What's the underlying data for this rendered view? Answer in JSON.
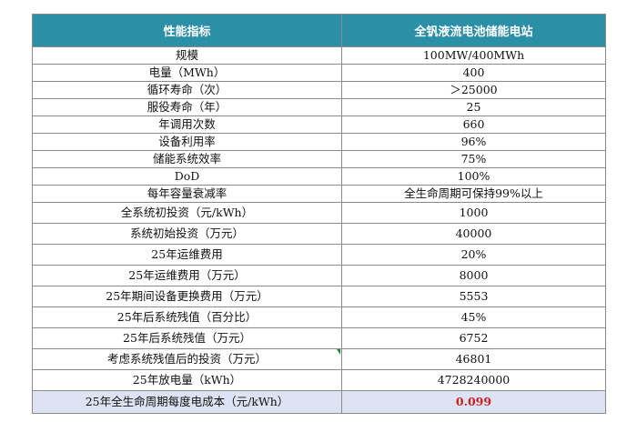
{
  "table": {
    "headers": [
      "性能指标",
      "全钒液流电池储能电站"
    ],
    "rows": [
      {
        "label": "规模",
        "value": "100MW/400MWh"
      },
      {
        "label": "电量（MWh）",
        "value": "400"
      },
      {
        "label": "循环寿命（次）",
        "value": "＞25000"
      },
      {
        "label": "服役寿命（年）",
        "value": "25"
      },
      {
        "label": "年调用次数",
        "value": "660"
      },
      {
        "label": "设备利用率",
        "value": "96%"
      },
      {
        "label": "储能系统效率",
        "value": "75%"
      },
      {
        "label": "DoD",
        "value": "100%"
      },
      {
        "label": "每年容量衰减率",
        "value": "全生命周期可保持99%以上"
      },
      {
        "label": "全系统初投资（元/kWh）",
        "value": "1000"
      },
      {
        "label": "系统初始投资（万元）",
        "value": "40000"
      },
      {
        "label": "25年运维费用",
        "value": "20%"
      },
      {
        "label": "25年运维费用（万元）",
        "value": "8000"
      },
      {
        "label": "25年期间设备更换费用（万元）",
        "value": "5553"
      },
      {
        "label": "25年后系统残值（百分比）",
        "value": "45%"
      },
      {
        "label": "25年后系统残值（万元）",
        "value": "6752"
      },
      {
        "label": "考虑系统残值后的投资（万元）",
        "value": "46801"
      },
      {
        "label": "25年放电量（kWh）",
        "value": "4728240000"
      },
      {
        "label": "25年全生命周期每度电成本（元/kWh）",
        "value": "0.099"
      }
    ]
  },
  "colors": {
    "header_bg": "#2b8fa6",
    "header_text": "#ffffff",
    "last_row_bg": "#dde3f2",
    "highlight_value": "#d11f1f"
  }
}
